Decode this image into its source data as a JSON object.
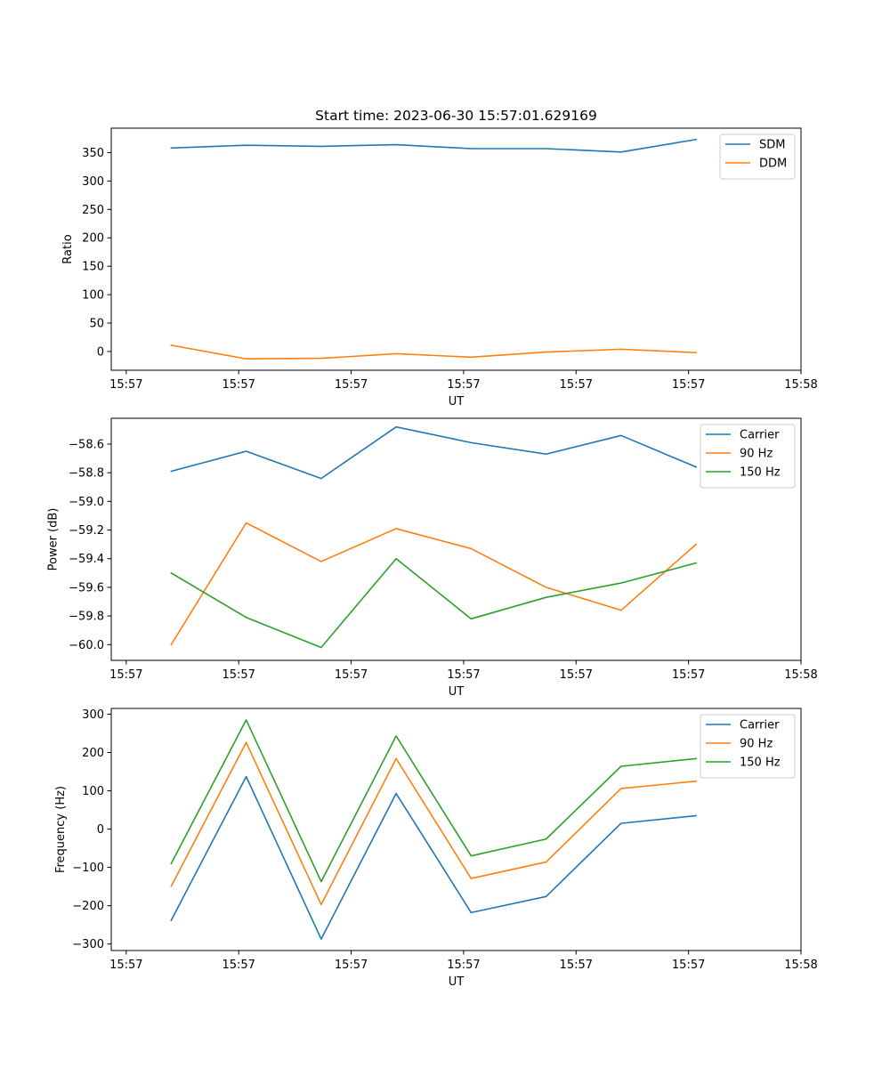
{
  "figure": {
    "title": "Start time: 2023-06-30 15:57:01.629169"
  },
  "chart_data": [
    {
      "type": "line",
      "ylabel": "Ratio",
      "xlabel": "UT",
      "xlim": [
        -0.1,
        4.5
      ],
      "ylim": [
        -33,
        393
      ],
      "x": [
        0.3,
        0.8,
        1.3,
        1.8,
        2.3,
        2.8,
        3.3,
        3.8
      ],
      "x_ticks": [
        0,
        0.75,
        1.5,
        2.25,
        3.0,
        3.75,
        4.5
      ],
      "x_tick_labels": [
        "15:57",
        "15:57",
        "15:57",
        "15:57",
        "15:57",
        "15:57",
        "15:58"
      ],
      "y_ticks": [
        0,
        50,
        100,
        150,
        200,
        250,
        300,
        350
      ],
      "y_tick_labels": [
        "0",
        "50",
        "100",
        "150",
        "200",
        "250",
        "300",
        "350"
      ],
      "legend_position": "top-right",
      "grid": false,
      "series": [
        {
          "name": "SDM",
          "color": "#1f77b4",
          "values": [
            358,
            363,
            361,
            364,
            357,
            357,
            351,
            373
          ]
        },
        {
          "name": "DDM",
          "color": "#ff7f0e",
          "values": [
            11,
            -13,
            -12,
            -4,
            -10,
            -1,
            4,
            -2
          ]
        }
      ]
    },
    {
      "type": "line",
      "ylabel": "Power (dB)",
      "xlabel": "UT",
      "xlim": [
        -0.1,
        4.5
      ],
      "ylim": [
        -60.11,
        -58.42
      ],
      "x": [
        0.3,
        0.8,
        1.3,
        1.8,
        2.3,
        2.8,
        3.3,
        3.8
      ],
      "x_ticks": [
        0,
        0.75,
        1.5,
        2.25,
        3.0,
        3.75,
        4.5
      ],
      "x_tick_labels": [
        "15:57",
        "15:57",
        "15:57",
        "15:57",
        "15:57",
        "15:57",
        "15:58"
      ],
      "y_ticks": [
        -60.0,
        -59.8,
        -59.6,
        -59.4,
        -59.2,
        -59.0,
        -58.8,
        -58.6
      ],
      "y_tick_labels": [
        "−60.0",
        "−59.8",
        "−59.6",
        "−59.4",
        "−59.2",
        "−59.0",
        "−58.8",
        "−58.6"
      ],
      "legend_position": "top-right",
      "grid": false,
      "series": [
        {
          "name": "Carrier",
          "color": "#1f77b4",
          "values": [
            -58.79,
            -58.65,
            -58.84,
            -58.48,
            -58.59,
            -58.67,
            -58.54,
            -58.76
          ]
        },
        {
          "name": "90 Hz",
          "color": "#ff7f0e",
          "values": [
            -60.0,
            -59.15,
            -59.42,
            -59.19,
            -59.33,
            -59.6,
            -59.76,
            -59.3
          ]
        },
        {
          "name": "150 Hz",
          "color": "#2ca02c",
          "values": [
            -59.5,
            -59.81,
            -60.02,
            -59.4,
            -59.82,
            -59.67,
            -59.57,
            -59.43
          ]
        }
      ]
    },
    {
      "type": "line",
      "ylabel": "Frequency (Hz)",
      "xlabel": "UT",
      "xlim": [
        -0.1,
        4.5
      ],
      "ylim": [
        -317,
        315
      ],
      "x": [
        0.3,
        0.8,
        1.3,
        1.8,
        2.3,
        2.8,
        3.3,
        3.8
      ],
      "x_ticks": [
        0,
        0.75,
        1.5,
        2.25,
        3.0,
        3.75,
        4.5
      ],
      "x_tick_labels": [
        "15:57",
        "15:57",
        "15:57",
        "15:57",
        "15:57",
        "15:57",
        "15:58"
      ],
      "y_ticks": [
        -300,
        -200,
        -100,
        0,
        100,
        200,
        300
      ],
      "y_tick_labels": [
        "−300",
        "−200",
        "−100",
        "0",
        "100",
        "200",
        "300"
      ],
      "legend_position": "top-right",
      "grid": false,
      "series": [
        {
          "name": "Carrier",
          "color": "#1f77b4",
          "values": [
            -238,
            137,
            -287,
            93,
            -218,
            -176,
            15,
            35
          ]
        },
        {
          "name": "90 Hz",
          "color": "#ff7f0e",
          "values": [
            -149,
            226,
            -197,
            184,
            -129,
            -86,
            106,
            125
          ]
        },
        {
          "name": "150 Hz",
          "color": "#2ca02c",
          "values": [
            -90,
            285,
            -137,
            243,
            -70,
            -26,
            164,
            184
          ]
        }
      ]
    }
  ]
}
